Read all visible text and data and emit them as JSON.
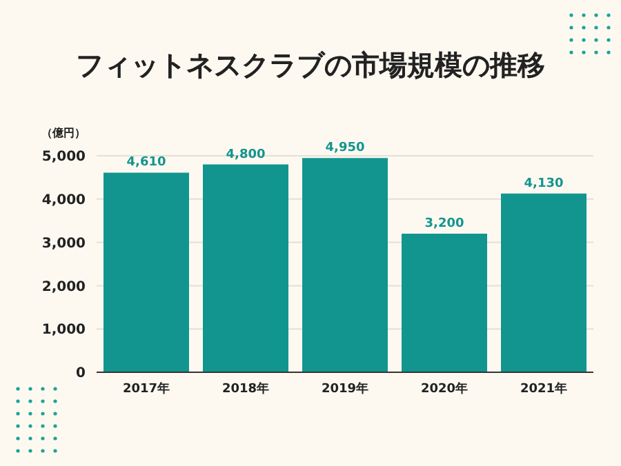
{
  "chart_data": {
    "type": "bar",
    "title": "フィットネスクラブの市場規模の推移",
    "ylabel": "（億円）",
    "categories": [
      "2017年",
      "2018年",
      "2019年",
      "2020年",
      "2021年"
    ],
    "values": [
      4610,
      4800,
      4950,
      3200,
      4130
    ],
    "color": "#12958f",
    "value_labels": [
      "4,610",
      "4,800",
      "4,950",
      "3,200",
      "4,130"
    ],
    "ylim": [
      0,
      5000
    ],
    "yticks": [
      0,
      {
        "value": 1000,
        "label": "1,000"
      },
      {
        "value": 2000,
        "label": "2,000"
      },
      {
        "value": 3000,
        "label": "3,000"
      },
      {
        "value": 4000,
        "label": "4,000"
      },
      {
        "value": 5000,
        "label": "5,000"
      }
    ],
    "grid": "y"
  }
}
